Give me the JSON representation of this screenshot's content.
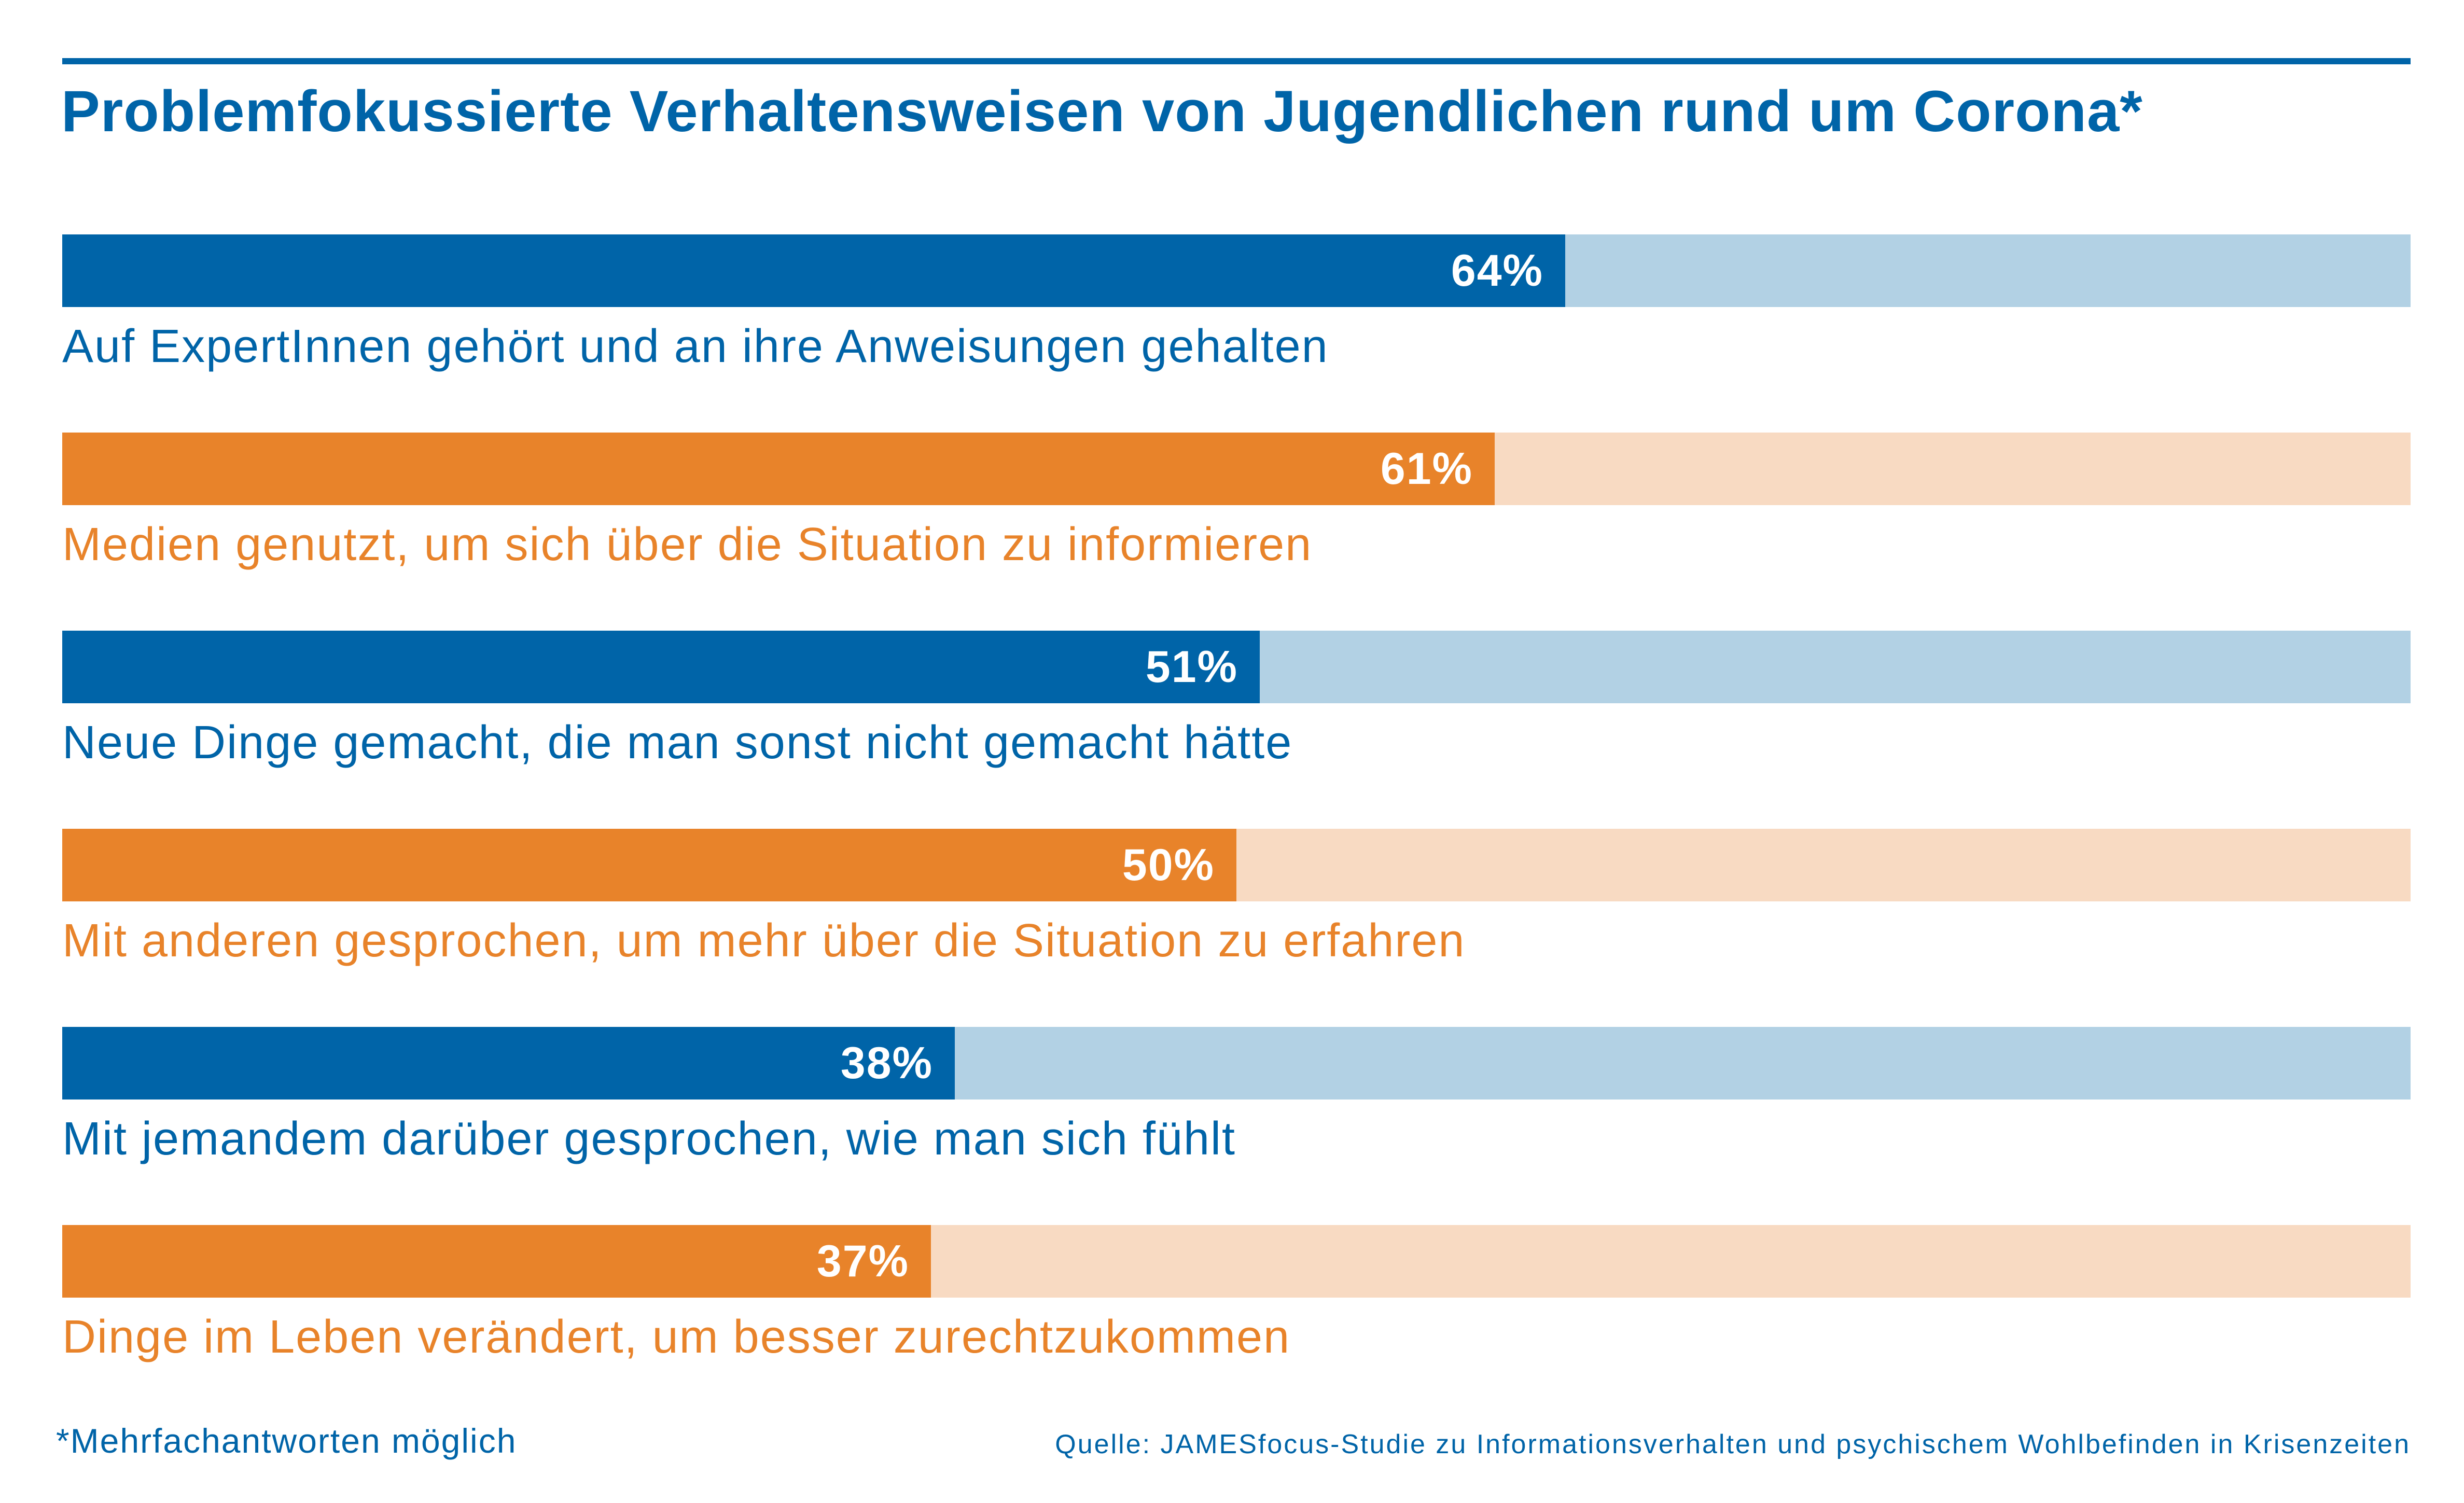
{
  "colors": {
    "blue": "#0064a8",
    "blue_light": "#b2d1e4",
    "orange": "#e8832a",
    "orange_light": "#f8dac2"
  },
  "chart_data": {
    "type": "bar",
    "orientation": "horizontal",
    "title": "Problemfokussierte Verhaltensweisen von Jugendlichen rund um Corona*",
    "xlim": [
      0,
      100
    ],
    "unit": "%",
    "categories": [
      "Auf ExpertInnen gehört und an ihre Anweisungen gehalten",
      "Medien genutzt, um sich über die Situation zu informieren",
      "Neue Dinge gemacht, die man sonst nicht gemacht hätte",
      "Mit anderen gesprochen, um mehr über die Situation zu erfahren",
      "Mit jemandem darüber gesprochen, wie man sich fühlt",
      "Dinge im Leben verändert, um besser zurechtzukommen"
    ],
    "values": [
      64,
      61,
      51,
      50,
      38,
      37
    ],
    "value_labels": [
      "64%",
      "61%",
      "51%",
      "50%",
      "38%",
      "37%"
    ],
    "bar_colors": [
      "blue",
      "orange",
      "blue",
      "orange",
      "blue",
      "orange"
    ],
    "footnote": "*Mehrfachantworten möglich",
    "source": "Quelle: JAMESfocus-Studie zu Informationsverhalten und psychischem Wohlbefinden in Krisenzeiten"
  }
}
